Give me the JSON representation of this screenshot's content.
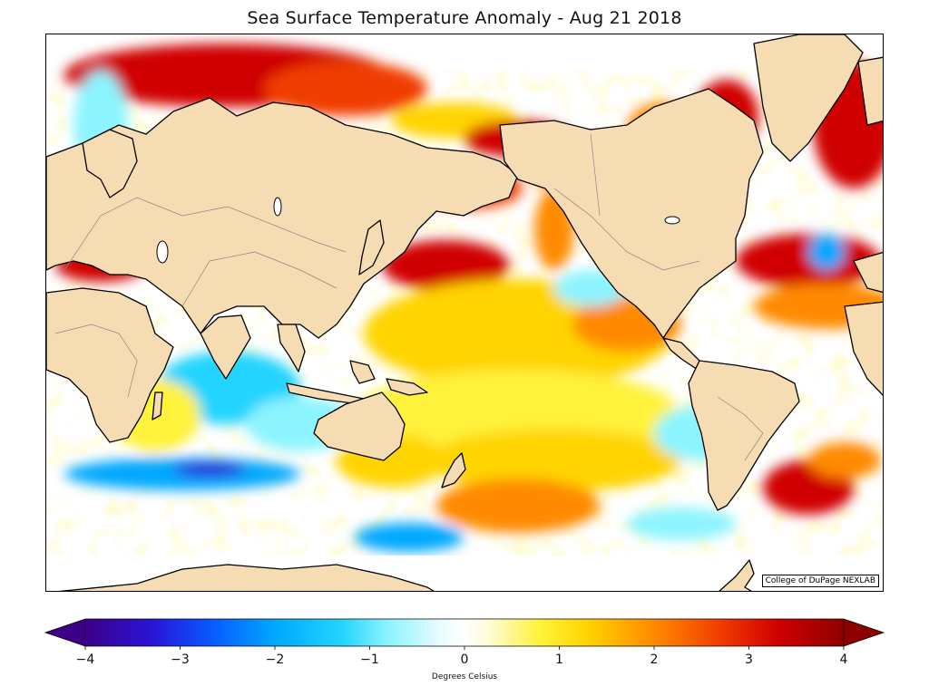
{
  "title": "Sea Surface Temperature Anomaly - Aug 21 2018",
  "credit": "College of DuPage NEXLAB",
  "colorbar": {
    "label": "Degrees Celsius",
    "min": -4,
    "max": 4,
    "ticks": [
      {
        "value": -4,
        "label": "−4"
      },
      {
        "value": -3,
        "label": "−3"
      },
      {
        "value": -2,
        "label": "−2"
      },
      {
        "value": -1,
        "label": "−1"
      },
      {
        "value": 0,
        "label": "0"
      },
      {
        "value": 1,
        "label": "1"
      },
      {
        "value": 2,
        "label": "2"
      },
      {
        "value": 3,
        "label": "3"
      },
      {
        "value": 4,
        "label": "4"
      }
    ],
    "stops": [
      {
        "value": -4,
        "color": "#3b0087"
      },
      {
        "value": -3.3,
        "color": "#2a14d6"
      },
      {
        "value": -2.7,
        "color": "#0a55ff"
      },
      {
        "value": -2,
        "color": "#00a8ff"
      },
      {
        "value": -1.3,
        "color": "#22d4ff"
      },
      {
        "value": -0.8,
        "color": "#8cf4ff"
      },
      {
        "value": -0.25,
        "color": "#e8fcff"
      },
      {
        "value": 0,
        "color": "#ffffff"
      },
      {
        "value": 0.25,
        "color": "#fffbd8"
      },
      {
        "value": 0.8,
        "color": "#fff23a"
      },
      {
        "value": 1.3,
        "color": "#ffd400"
      },
      {
        "value": 2,
        "color": "#ff8a00"
      },
      {
        "value": 2.7,
        "color": "#f03c00"
      },
      {
        "value": 3.3,
        "color": "#d00000"
      },
      {
        "value": 4,
        "color": "#8e0000"
      }
    ]
  },
  "colors": {
    "land": "#f5dcb3",
    "coast": "#000000",
    "border": "#888888",
    "ocean_base": "#ffffff"
  }
}
